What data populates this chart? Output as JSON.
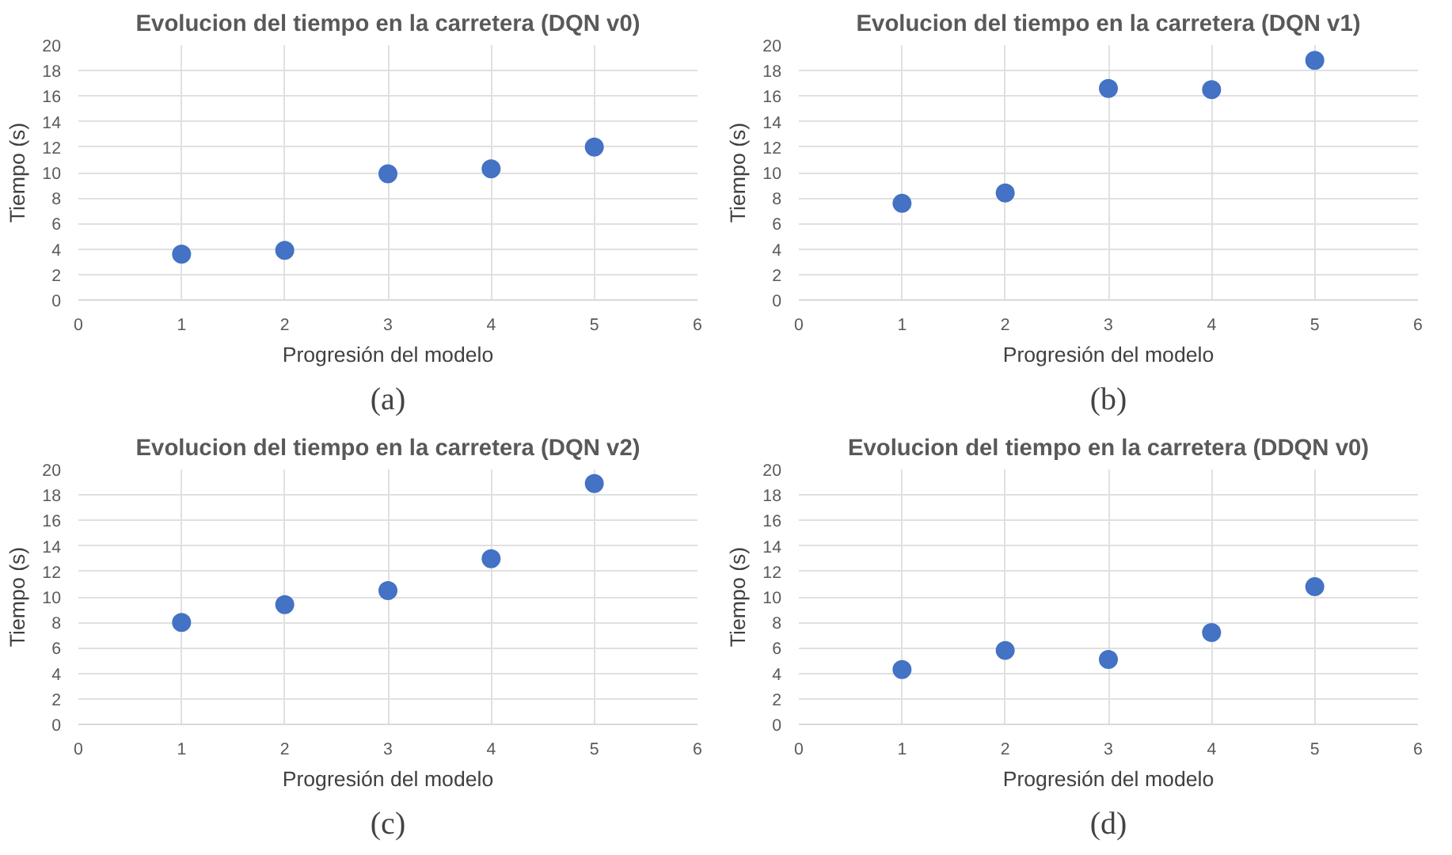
{
  "chart_data": [
    {
      "type": "scatter",
      "title": "Evolucion del tiempo en la carretera (DQN v0)",
      "xlabel": "Progresión del modelo",
      "ylabel": "Tiempo (s)",
      "x": [
        1,
        2,
        3,
        4,
        5
      ],
      "series": [
        {
          "color": "#4472c4",
          "values": [
            3.6,
            3.9,
            9.9,
            10.3,
            12.0
          ]
        }
      ],
      "xlim": [
        0,
        6
      ],
      "xticks": [
        0,
        1,
        2,
        3,
        4,
        5,
        6
      ],
      "ylim": [
        0,
        20
      ],
      "yticks": [
        0,
        2,
        4,
        6,
        8,
        10,
        12,
        14,
        16,
        18,
        20
      ],
      "grid": true,
      "marker": "circle",
      "annotations": [
        "(a)"
      ]
    },
    {
      "type": "scatter",
      "title": "Evolucion del tiempo en la carretera (DQN v1)",
      "xlabel": "Progresión del modelo",
      "ylabel": "Tiempo (s)",
      "x": [
        1,
        2,
        3,
        4,
        5
      ],
      "series": [
        {
          "color": "#4472c4",
          "values": [
            7.6,
            8.4,
            16.6,
            16.5,
            18.8
          ]
        }
      ],
      "xlim": [
        0,
        6
      ],
      "xticks": [
        0,
        1,
        2,
        3,
        4,
        5,
        6
      ],
      "ylim": [
        0,
        20
      ],
      "yticks": [
        0,
        2,
        4,
        6,
        8,
        10,
        12,
        14,
        16,
        18,
        20
      ],
      "grid": true,
      "marker": "circle",
      "annotations": [
        "(b)"
      ]
    },
    {
      "type": "scatter",
      "title": "Evolucion del tiempo en la carretera (DQN v2)",
      "xlabel": "Progresión del modelo",
      "ylabel": "Tiempo (s)",
      "x": [
        1,
        2,
        3,
        4,
        5
      ],
      "series": [
        {
          "color": "#4472c4",
          "values": [
            8.0,
            9.4,
            10.5,
            13.0,
            18.9
          ]
        }
      ],
      "xlim": [
        0,
        6
      ],
      "xticks": [
        0,
        1,
        2,
        3,
        4,
        5,
        6
      ],
      "ylim": [
        0,
        20
      ],
      "yticks": [
        0,
        2,
        4,
        6,
        8,
        10,
        12,
        14,
        16,
        18,
        20
      ],
      "grid": true,
      "marker": "circle",
      "annotations": [
        "(c)"
      ]
    },
    {
      "type": "scatter",
      "title": "Evolucion del tiempo en la carretera (DDQN v0)",
      "xlabel": "Progresión del modelo",
      "ylabel": "Tiempo (s)",
      "x": [
        1,
        2,
        3,
        4,
        5
      ],
      "series": [
        {
          "color": "#4472c4",
          "values": [
            4.3,
            5.8,
            5.1,
            7.2,
            10.8
          ]
        }
      ],
      "xlim": [
        0,
        6
      ],
      "xticks": [
        0,
        1,
        2,
        3,
        4,
        5,
        6
      ],
      "ylim": [
        0,
        20
      ],
      "yticks": [
        0,
        2,
        4,
        6,
        8,
        10,
        12,
        14,
        16,
        18,
        20
      ],
      "grid": true,
      "marker": "circle",
      "annotations": [
        "(d)"
      ]
    }
  ]
}
